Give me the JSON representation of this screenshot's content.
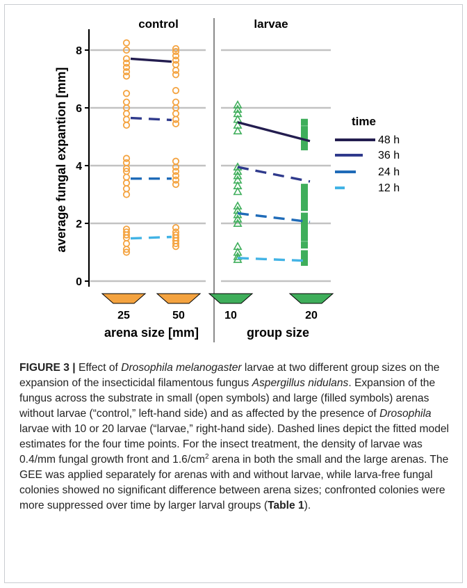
{
  "chart_data": {
    "type": "scatter",
    "ylabel": "average fungal expantion [mm]",
    "ylim": [
      0,
      8.5
    ],
    "yticks": [
      0,
      2,
      4,
      6,
      8
    ],
    "grid": true,
    "panels": [
      {
        "name": "control",
        "xlabel": "arena size [mm]",
        "categories": [
          "25",
          "50"
        ],
        "color": "#f4a340",
        "marker": "circle",
        "points": [
          {
            "category": "25",
            "time": "12 h",
            "values": [
              1.0,
              1.1,
              1.3,
              1.5,
              1.6,
              1.7,
              1.8
            ]
          },
          {
            "category": "25",
            "time": "24 h",
            "values": [
              3.0,
              3.2,
              3.4,
              3.6,
              3.8,
              3.9,
              4.1,
              4.25
            ]
          },
          {
            "category": "25",
            "time": "36 h",
            "values": [
              5.4,
              5.6,
              5.8,
              6.0,
              6.2,
              6.5
            ]
          },
          {
            "category": "25",
            "time": "48 h",
            "values": [
              7.1,
              7.25,
              7.4,
              7.55,
              7.7,
              8.0,
              8.25
            ]
          },
          {
            "category": "50",
            "time": "12 h",
            "values": [
              1.2,
              1.3,
              1.4,
              1.5,
              1.6,
              1.7,
              1.85
            ]
          },
          {
            "category": "50",
            "time": "24 h",
            "values": [
              3.35,
              3.5,
              3.65,
              3.8,
              3.95,
              4.15
            ]
          },
          {
            "category": "50",
            "time": "36 h",
            "values": [
              5.45,
              5.6,
              5.8,
              6.0,
              6.2,
              6.6
            ]
          },
          {
            "category": "50",
            "time": "48 h",
            "values": [
              7.15,
              7.3,
              7.5,
              7.65,
              7.8,
              7.95,
              8.05
            ]
          }
        ],
        "fits": [
          {
            "time": "12 h",
            "values": [
              1.48,
              1.53
            ]
          },
          {
            "time": "24 h",
            "values": [
              3.55,
              3.55
            ]
          },
          {
            "time": "36 h",
            "values": [
              5.65,
              5.58
            ]
          },
          {
            "time": "48 h",
            "values": [
              7.7,
              7.6
            ]
          }
        ]
      },
      {
        "name": "larvae",
        "xlabel": "group size",
        "categories": [
          "10",
          "20"
        ],
        "color": "#3fae5b",
        "marker_small": "triangle",
        "marker_large": "square",
        "points": [
          {
            "category": "10",
            "time": "12 h",
            "values": [
              0.75,
              0.85,
              1.0,
              1.2
            ]
          },
          {
            "category": "10",
            "time": "24 h",
            "values": [
              2.0,
              2.15,
              2.3,
              2.45,
              2.6
            ]
          },
          {
            "category": "10",
            "time": "36 h",
            "values": [
              3.1,
              3.3,
              3.5,
              3.65,
              3.8,
              3.95
            ]
          },
          {
            "category": "10",
            "time": "48 h",
            "values": [
              5.2,
              5.4,
              5.6,
              5.8,
              5.95,
              6.1
            ]
          },
          {
            "category": "20",
            "time": "12 h",
            "values": [
              0.65,
              0.8,
              0.95,
              1.25
            ]
          },
          {
            "category": "20",
            "time": "24 h",
            "values": [
              1.5,
              1.7,
              1.9,
              2.1,
              2.25
            ]
          },
          {
            "category": "20",
            "time": "36 h",
            "values": [
              2.55,
              2.7,
              2.9,
              3.05,
              3.25
            ]
          },
          {
            "category": "20",
            "time": "48 h",
            "values": [
              4.65,
              4.85,
              5.05,
              5.25,
              5.5
            ]
          }
        ],
        "fits": [
          {
            "time": "12 h",
            "values": [
              0.8,
              0.7
            ]
          },
          {
            "time": "24 h",
            "values": [
              2.35,
              2.05
            ]
          },
          {
            "time": "36 h",
            "values": [
              3.95,
              3.45
            ]
          },
          {
            "time": "48 h",
            "values": [
              5.5,
              4.85
            ]
          }
        ]
      }
    ],
    "legend": {
      "title": "time",
      "placement": "right",
      "entries": [
        {
          "label": "48 h",
          "color": "#231d4f"
        },
        {
          "label": "36 h",
          "color": "#2f3a8c"
        },
        {
          "label": "24 h",
          "color": "#1f6bb8"
        },
        {
          "label": "12 h",
          "color": "#42b3e5"
        }
      ]
    }
  },
  "caption": {
    "label": "FIGURE 3 |",
    "parts": [
      {
        "text": " Effect of ",
        "style": "normal"
      },
      {
        "text": "Drosophila melanogaster",
        "style": "italic"
      },
      {
        "text": " larvae at two different group sizes on the expansion of the insecticidal filamentous fungus ",
        "style": "normal"
      },
      {
        "text": "Aspergillus nidulans",
        "style": "italic"
      },
      {
        "text": ". Expansion of the fungus across the substrate in small (open symbols) and large (filled symbols) arenas without larvae (“control,” left-hand side) and as affected by the presence of ",
        "style": "normal"
      },
      {
        "text": "Drosophila",
        "style": "italic"
      },
      {
        "text": " larvae with 10 or 20 larvae (“larvae,” right-hand side). Dashed lines depict the fitted model estimates for the four time points. For the insect treatment, the density of larvae was 0.4/mm fungal growth front and 1.6/cm",
        "style": "normal"
      },
      {
        "text": "2",
        "style": "sup"
      },
      {
        "text": " arena in both the small and the large arenas. The GEE was applied separately for arenas with and without larvae, while larva-free fungal colonies showed no significant difference between arena sizes; confronted colonies were more suppressed over time by larger larval groups (",
        "style": "normal"
      },
      {
        "text": "Table 1",
        "style": "bold"
      },
      {
        "text": ").",
        "style": "normal"
      }
    ]
  }
}
